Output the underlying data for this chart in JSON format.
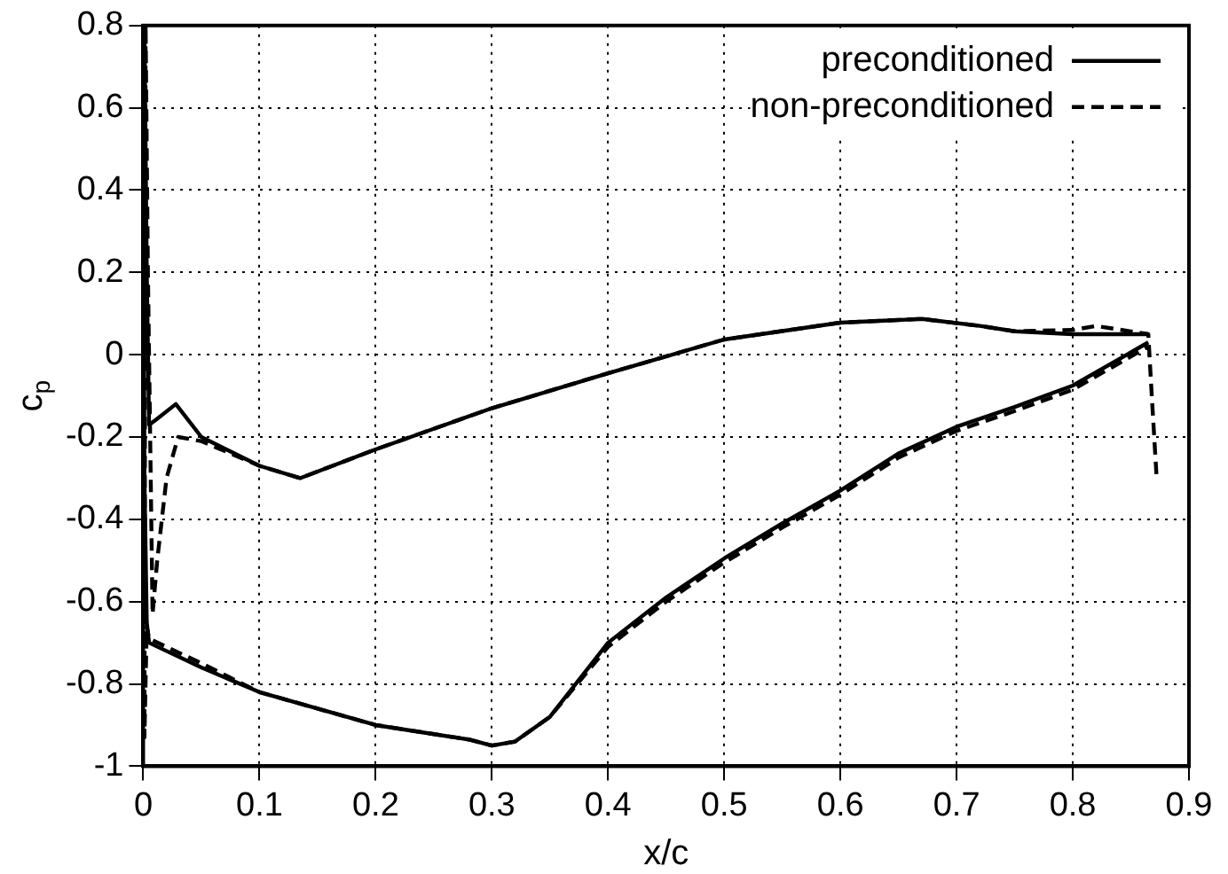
{
  "chart_data": {
    "type": "line",
    "xlabel": "x/c",
    "ylabel": "c$_{p}$",
    "xlim": [
      0,
      0.9
    ],
    "xticks": [
      0,
      0.1,
      0.2,
      0.3,
      0.4,
      0.5,
      0.6,
      0.7,
      0.8,
      0.9
    ],
    "ylim": [
      -1,
      0.8
    ],
    "yticks": [
      -1,
      -0.8,
      -0.6,
      -0.4,
      -0.2,
      0,
      0.2,
      0.4,
      0.6,
      0.8
    ],
    "grid": true,
    "legend": "top right",
    "marker": "none",
    "series": [
      {
        "name": "preconditioned",
        "color": "#000000",
        "line_style": "solid",
        "x": [
          0.865,
          0.8,
          0.75,
          0.72,
          0.67,
          0.6,
          0.5,
          0.4,
          0.3,
          0.2,
          0.135,
          0.1,
          0.05,
          0.028,
          0.01,
          0.005,
          0.003,
          0.001,
          0.0,
          0.001,
          0.003,
          0.005,
          0.05,
          0.1,
          0.2,
          0.28,
          0.3,
          0.32,
          0.35,
          0.4,
          0.45,
          0.5,
          0.55,
          0.6,
          0.65,
          0.7,
          0.75,
          0.8,
          0.865
        ],
        "values": [
          0.05,
          0.05,
          0.057,
          0.07,
          0.087,
          0.078,
          0.037,
          -0.045,
          -0.13,
          -0.23,
          -0.3,
          -0.27,
          -0.2,
          -0.12,
          -0.16,
          -0.17,
          0.2,
          0.8,
          0.6,
          -0.3,
          -0.65,
          -0.7,
          -0.76,
          -0.82,
          -0.9,
          -0.935,
          -0.95,
          -0.94,
          -0.88,
          -0.7,
          -0.59,
          -0.495,
          -0.41,
          -0.33,
          -0.24,
          -0.175,
          -0.127,
          -0.075,
          0.03
        ]
      },
      {
        "name": "non-preconditioned",
        "color": "#000000",
        "line_style": "dashed",
        "x": [
          0.872,
          0.868,
          0.865,
          0.82,
          0.8,
          0.75,
          0.72,
          0.67,
          0.6,
          0.5,
          0.4,
          0.3,
          0.2,
          0.135,
          0.1,
          0.05,
          0.03,
          0.02,
          0.012,
          0.008,
          0.004,
          0.002,
          0.001,
          0.003,
          0.005,
          0.05,
          0.1,
          0.2,
          0.28,
          0.3,
          0.32,
          0.35,
          0.4,
          0.45,
          0.5,
          0.55,
          0.6,
          0.65,
          0.7,
          0.75,
          0.8,
          0.865
        ],
        "values": [
          -0.29,
          -0.1,
          0.05,
          0.07,
          0.06,
          0.057,
          0.07,
          0.087,
          0.078,
          0.037,
          -0.045,
          -0.13,
          -0.23,
          -0.3,
          -0.27,
          -0.21,
          -0.2,
          -0.3,
          -0.5,
          -0.63,
          0.2,
          0.8,
          -0.93,
          -0.66,
          -0.69,
          -0.75,
          -0.82,
          -0.9,
          -0.935,
          -0.95,
          -0.94,
          -0.88,
          -0.71,
          -0.6,
          -0.505,
          -0.42,
          -0.34,
          -0.25,
          -0.185,
          -0.137,
          -0.085,
          0.02
        ]
      }
    ]
  }
}
